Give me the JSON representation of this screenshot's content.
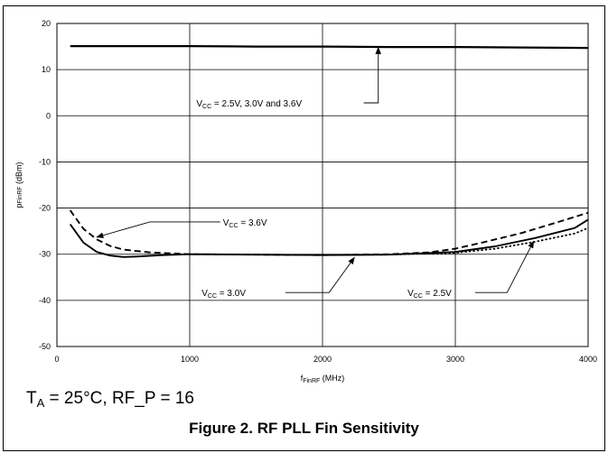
{
  "chart_data": {
    "type": "line",
    "xlabel": {
      "main": "f",
      "sub": "FinRF",
      "unit": " (MHz)"
    },
    "ylabel": {
      "main": "p",
      "sub": "FinRF",
      "unit": " (dBm)"
    },
    "xlim": [
      0,
      4000
    ],
    "ylim": [
      -50,
      20
    ],
    "x_ticks": [
      0,
      1000,
      2000,
      3000,
      4000
    ],
    "y_ticks": [
      20,
      10,
      0,
      -10,
      -20,
      -30,
      -40,
      -50
    ],
    "x_tick_labels": [
      "0",
      "1000",
      "2000",
      "3000",
      "4000"
    ],
    "y_tick_labels": [
      "20",
      "10",
      "0",
      "-10",
      "-20",
      "-30",
      "-40",
      "-50"
    ],
    "grid": true,
    "series": [
      {
        "style": "solid-thick",
        "x": [
          100,
          500,
          1000,
          1500,
          2000,
          2500,
          3000,
          3500,
          4000
        ],
        "y": [
          15.1,
          15.1,
          15.1,
          15.0,
          15.0,
          14.9,
          14.9,
          14.8,
          14.7
        ]
      },
      {
        "style": "dashed",
        "x": [
          100,
          200,
          300,
          400,
          500,
          700,
          1000,
          1500,
          2000,
          2500,
          2800,
          3000,
          3200,
          3500,
          3800,
          4000
        ],
        "y": [
          -20.5,
          -24.5,
          -26.8,
          -28.2,
          -29.0,
          -29.6,
          -30.0,
          -30.1,
          -30.2,
          -30.0,
          -29.6,
          -28.8,
          -27.5,
          -25.4,
          -22.8,
          -21.0
        ]
      },
      {
        "style": "solid",
        "x": [
          100,
          200,
          300,
          400,
          500,
          600,
          800,
          1000,
          1500,
          2000,
          2500,
          3000,
          3300,
          3600,
          3900,
          4000
        ],
        "y": [
          -23.5,
          -27.5,
          -29.5,
          -30.3,
          -30.6,
          -30.5,
          -30.2,
          -30.0,
          -30.1,
          -30.2,
          -30.1,
          -29.5,
          -28.3,
          -26.5,
          -24.3,
          -22.5
        ]
      },
      {
        "style": "dotted",
        "x": [
          2000,
          2500,
          3000,
          3300,
          3600,
          3900,
          4000
        ],
        "y": [
          -30.2,
          -30.1,
          -29.7,
          -28.8,
          -27.3,
          -25.5,
          -24.3
        ]
      }
    ],
    "annotations": [
      {
        "pre": "V",
        "sub": "CC",
        "post": " = 2.5V, 3.0V and 3.6V",
        "text_at": [
          1050,
          2.8
        ],
        "line": [
          [
            2310,
            2.8
          ],
          [
            2420,
            2.8
          ],
          [
            2420,
            14.8
          ]
        ]
      },
      {
        "pre": "V",
        "sub": "CC",
        "post": " = 3.6V",
        "text_at": [
          1250,
          -23.0
        ],
        "line": [
          [
            1230,
            -23.0
          ],
          [
            700,
            -23.0
          ],
          [
            300,
            -26.3
          ]
        ]
      },
      {
        "pre": "V",
        "sub": "CC",
        "post": " = 3.0V",
        "text_at": [
          1090,
          -38.3
        ],
        "line": [
          [
            1720,
            -38.3
          ],
          [
            2050,
            -38.3
          ],
          [
            2240,
            -30.7
          ]
        ]
      },
      {
        "pre": "V",
        "sub": "CC",
        "post": " = 2.5V",
        "text_at": [
          2640,
          -38.3
        ],
        "line": [
          [
            3150,
            -38.3
          ],
          [
            3390,
            -38.3
          ],
          [
            3590,
            -27.2
          ]
        ]
      }
    ]
  },
  "conditions": {
    "pre": "T",
    "sub": "A",
    "post": " = 25°C, RF_P = 16"
  },
  "caption": "Figure 2. RF PLL Fin Sensitivity"
}
